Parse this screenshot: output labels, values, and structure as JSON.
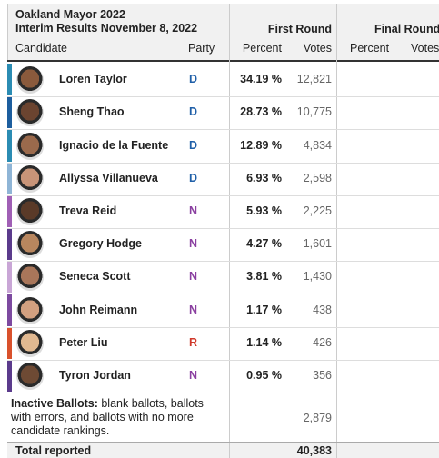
{
  "header": {
    "title": "Oakland Mayor 2022",
    "subtitle": "Interim Results November 8, 2022",
    "first_round": "First Round",
    "final_round": "Final Round"
  },
  "columns": {
    "candidate": "Candidate",
    "party": "Party",
    "percent": "Percent",
    "votes": "Votes",
    "final_percent": "Percent",
    "final_votes": "Votes"
  },
  "party_colors": {
    "D": "#1f5fa8",
    "N": "#8a3fa0",
    "R": "#d0392b"
  },
  "rows": [
    {
      "name": "Loren Taylor",
      "party": "D",
      "percent": "34.19 %",
      "votes": "12,821",
      "color": "#2b8cb3"
    },
    {
      "name": "Sheng Thao",
      "party": "D",
      "percent": "28.73 %",
      "votes": "10,775",
      "color": "#1d5e9e"
    },
    {
      "name": "Ignacio de la Fuente",
      "party": "D",
      "percent": "12.89 %",
      "votes": "4,834",
      "color": "#2b8cb3"
    },
    {
      "name": "Allyssa Villanueva",
      "party": "D",
      "percent": "6.93 %",
      "votes": "2,598",
      "color": "#8fb5d6"
    },
    {
      "name": "Treva Reid",
      "party": "N",
      "percent": "5.93 %",
      "votes": "2,225",
      "color": "#a05fb5"
    },
    {
      "name": "Gregory Hodge",
      "party": "N",
      "percent": "4.27 %",
      "votes": "1,601",
      "color": "#5b3b8c"
    },
    {
      "name": "Seneca Scott",
      "party": "N",
      "percent": "3.81 %",
      "votes": "1,430",
      "color": "#c9a6d6"
    },
    {
      "name": "John Reimann",
      "party": "N",
      "percent": "1.17 %",
      "votes": "438",
      "color": "#7d4aa0"
    },
    {
      "name": "Peter Liu",
      "party": "R",
      "percent": "1.14 %",
      "votes": "426",
      "color": "#d9512c"
    },
    {
      "name": "Tyron Jordan",
      "party": "N",
      "percent": "0.95 %",
      "votes": "356",
      "color": "#5b3b8c"
    }
  ],
  "inactive": {
    "label": "Inactive Ballots:",
    "text": "blank ballots, ballots with errors, and  ballots with no more candidate rankings.",
    "votes": "2,879"
  },
  "total": {
    "label": "Total reported",
    "votes": "40,383"
  }
}
